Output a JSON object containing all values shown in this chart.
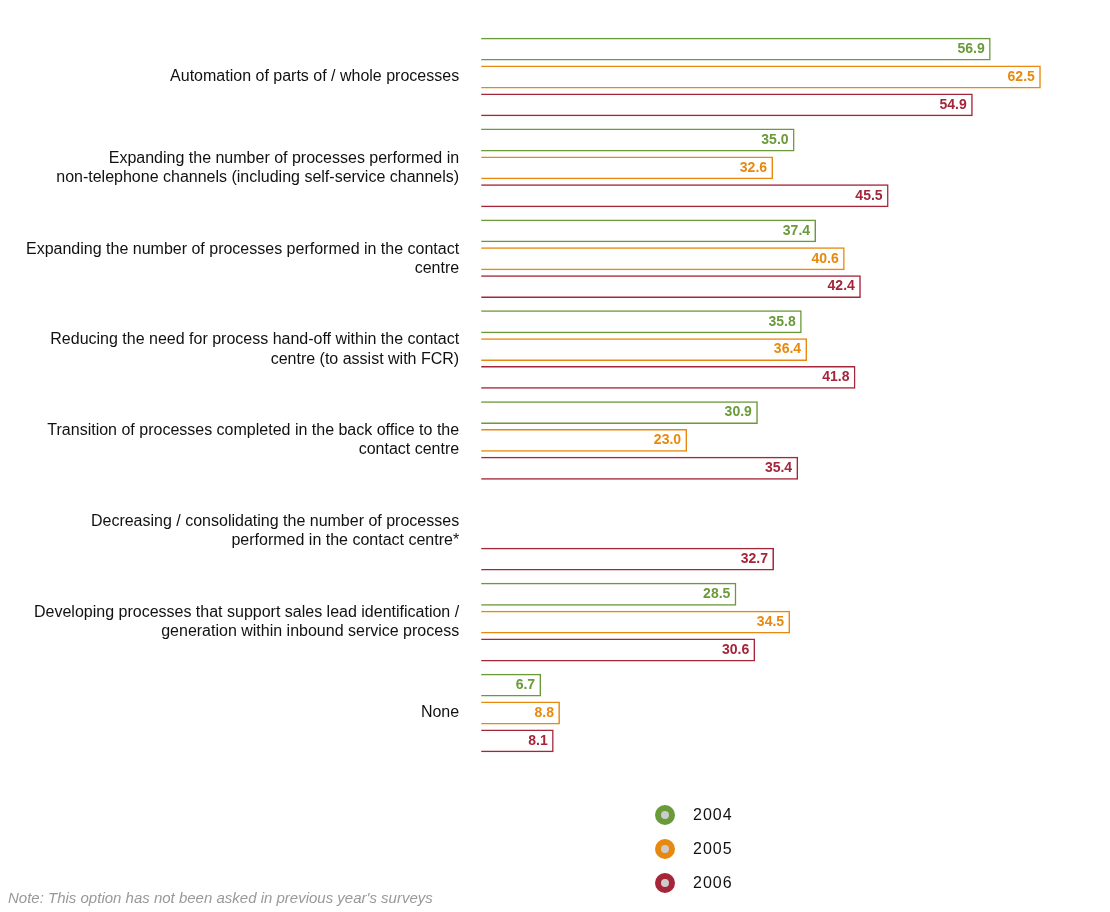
{
  "chart_data": {
    "type": "bar",
    "orientation": "horizontal",
    "tick_labels": "y",
    "grid": false,
    "legend": "bottom",
    "categories": [
      "Automation of parts of / whole processes",
      "Expanding the number of processes performed in non-telephone channels (including self-service channels)",
      "Expanding the number of processes performed in the contact centre",
      "Reducing the need for process hand-off within the contact centre (to assist with FCR)",
      "Transition of processes completed in the back office to the contact centre",
      "Decreasing / consolidating the number of processes performed in the contact centre*",
      "Developing processes that support sales lead identification / generation within inbound service process",
      "None"
    ],
    "series": [
      {
        "name": "2004",
        "color": "#6a9a3a",
        "values": [
          56.9,
          35.0,
          37.4,
          35.8,
          30.9,
          null,
          28.5,
          6.7
        ],
        "value_labels": [
          "56.9",
          "35.0",
          "37.4",
          "35.8",
          "30.9",
          null,
          "28.5",
          "6.7"
        ]
      },
      {
        "name": "2005",
        "color": "#e8890f",
        "values": [
          62.5,
          32.6,
          40.6,
          36.4,
          23.0,
          null,
          34.5,
          8.8
        ],
        "value_labels": [
          "62.5",
          "32.6",
          "40.6",
          "36.4",
          "23.0",
          null,
          "34.5",
          "8.8"
        ]
      },
      {
        "name": "2006",
        "color": "#a52539",
        "values": [
          54.9,
          45.5,
          42.4,
          41.8,
          35.4,
          32.7,
          30.6,
          8.1
        ],
        "value_labels": [
          "54.9",
          "45.5",
          "42.4",
          "41.8",
          "35.4",
          "32.7",
          "30.6",
          "8.1"
        ]
      }
    ],
    "annotations": [
      "Note: This option has not been asked in previous year's surveys"
    ]
  }
}
